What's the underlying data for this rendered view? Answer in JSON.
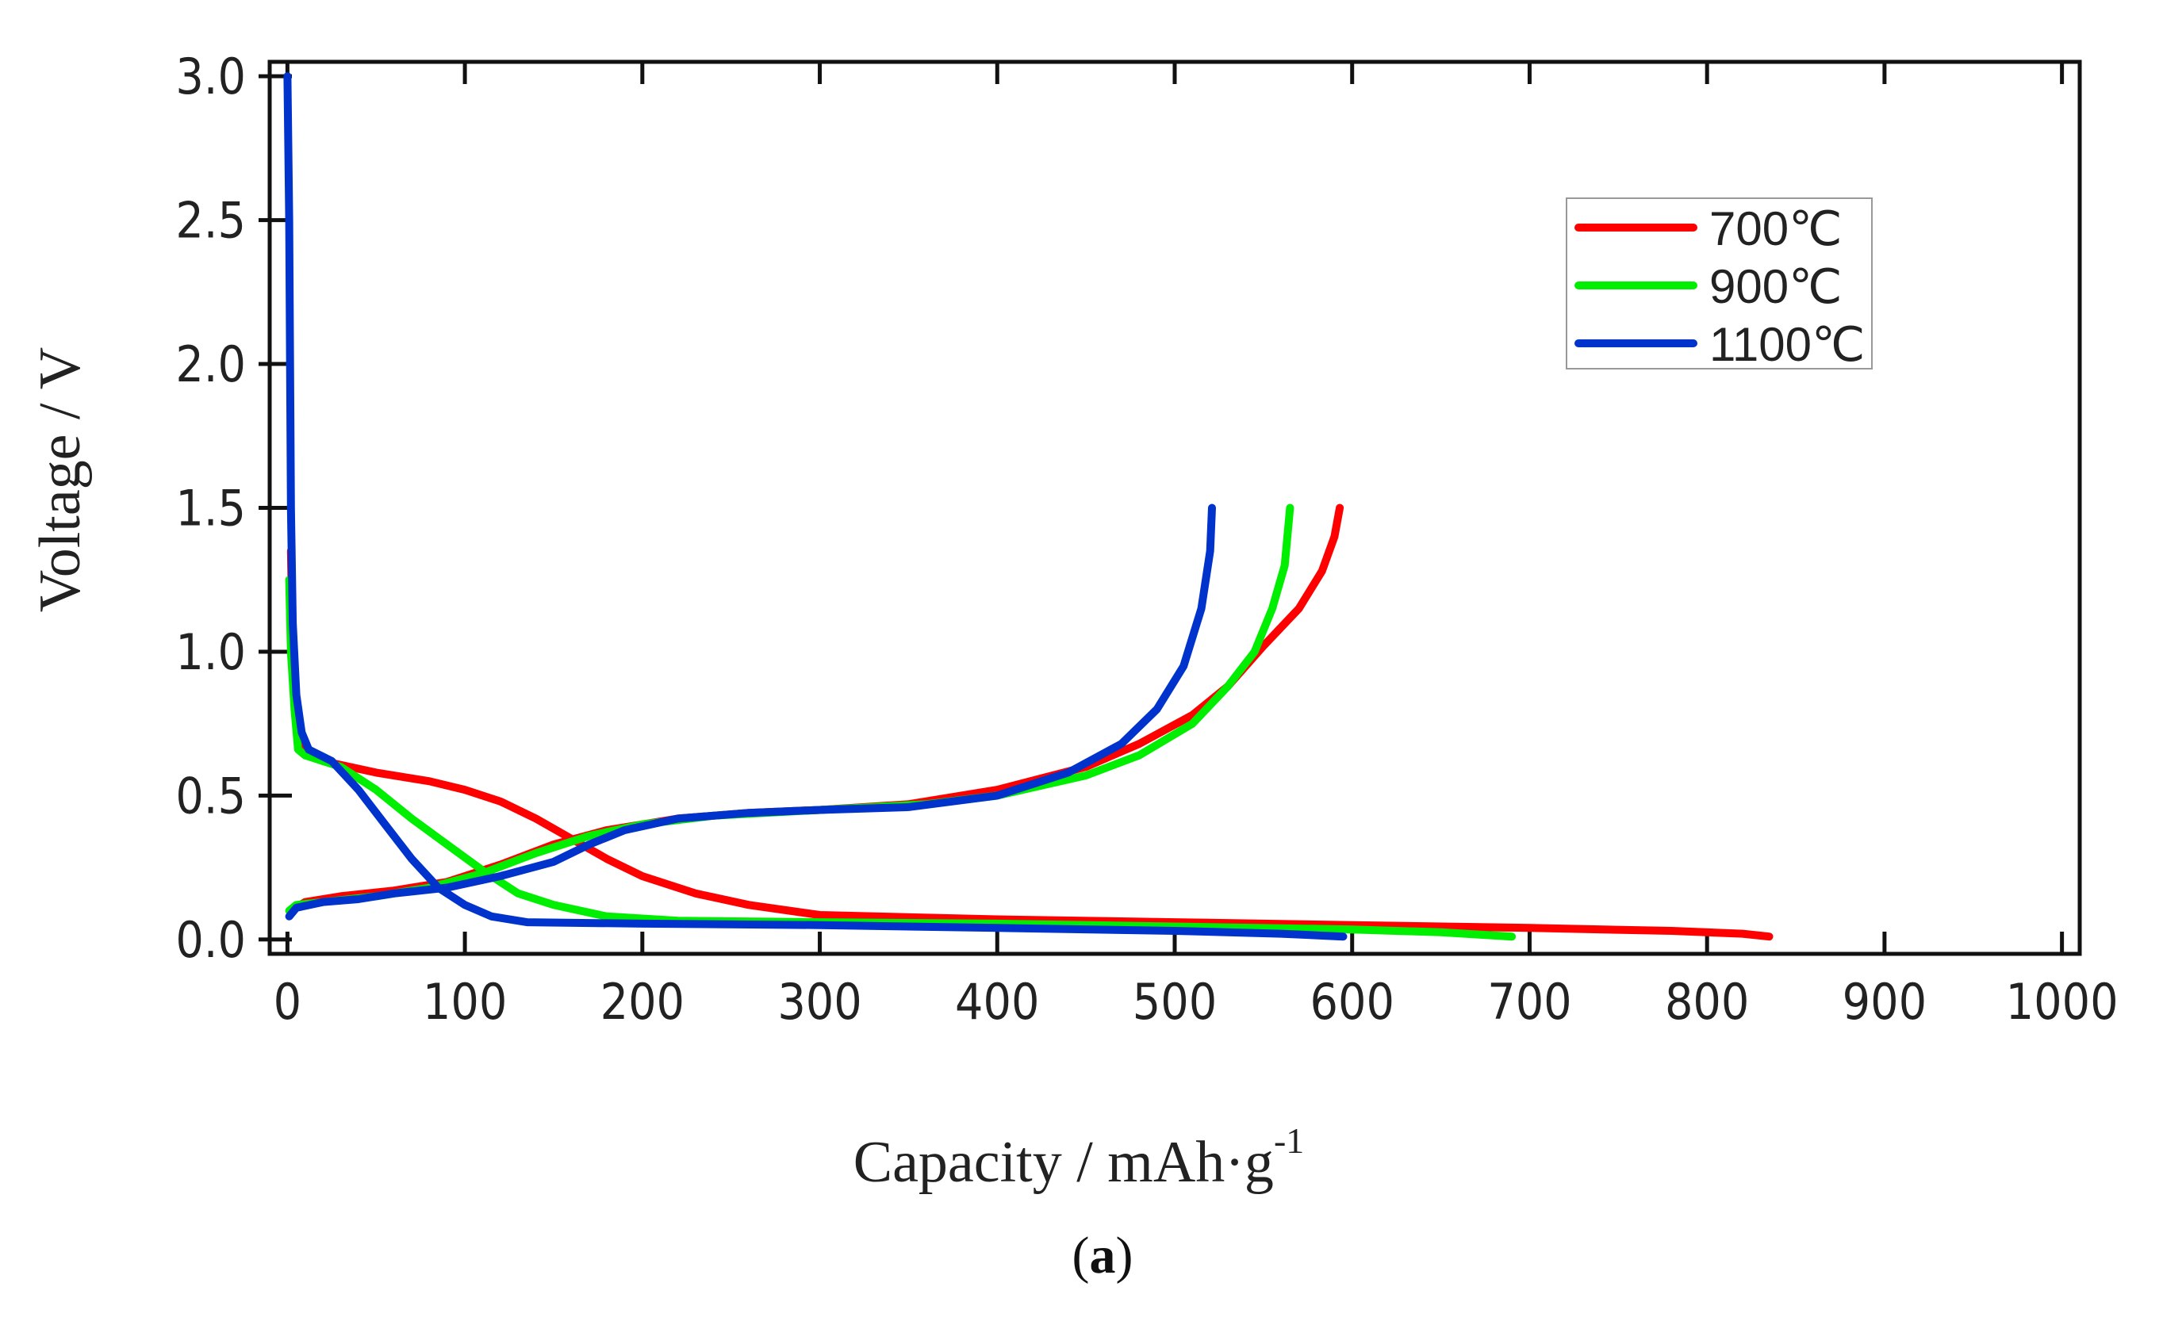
{
  "chart_data": {
    "type": "line",
    "title": "",
    "xlabel": "Capacity / mAh·g",
    "xlabel_superscript": "-1",
    "ylabel": "Voltage / V",
    "caption_paren_open": "(",
    "caption_letter": "a",
    "caption_paren_close": ")",
    "xlim": [
      -10,
      1010
    ],
    "ylim": [
      -0.05,
      3.05
    ],
    "xticks": [
      0,
      100,
      200,
      300,
      400,
      500,
      600,
      700,
      800,
      900,
      1000
    ],
    "xtick_labels": [
      "0",
      "100",
      "200",
      "300",
      "400",
      "500",
      "600",
      "700",
      "800",
      "900",
      "1000"
    ],
    "yticks": [
      0.0,
      0.5,
      1.0,
      1.5,
      2.0,
      2.5,
      3.0
    ],
    "ytick_labels": [
      "0.0",
      "0.5",
      "1.0",
      "1.5",
      "2.0",
      "2.5",
      "3.0"
    ],
    "grid": false,
    "legend_position": "top-right",
    "series": [
      {
        "name": "700℃",
        "color": "#ff0000",
        "discharge": [
          [
            2,
            1.35
          ],
          [
            3,
            1.0
          ],
          [
            5,
            0.8
          ],
          [
            8,
            0.68
          ],
          [
            20,
            0.62
          ],
          [
            50,
            0.58
          ],
          [
            80,
            0.55
          ],
          [
            100,
            0.52
          ],
          [
            120,
            0.48
          ],
          [
            140,
            0.42
          ],
          [
            160,
            0.35
          ],
          [
            180,
            0.28
          ],
          [
            200,
            0.22
          ],
          [
            230,
            0.16
          ],
          [
            260,
            0.12
          ],
          [
            300,
            0.085
          ],
          [
            400,
            0.07
          ],
          [
            500,
            0.06
          ],
          [
            600,
            0.05
          ],
          [
            700,
            0.04
          ],
          [
            780,
            0.03
          ],
          [
            820,
            0.02
          ],
          [
            835,
            0.01
          ]
        ],
        "charge": [
          [
            2,
            0.1
          ],
          [
            10,
            0.13
          ],
          [
            30,
            0.15
          ],
          [
            60,
            0.17
          ],
          [
            90,
            0.2
          ],
          [
            120,
            0.26
          ],
          [
            150,
            0.33
          ],
          [
            180,
            0.38
          ],
          [
            220,
            0.42
          ],
          [
            260,
            0.44
          ],
          [
            300,
            0.45
          ],
          [
            350,
            0.47
          ],
          [
            400,
            0.52
          ],
          [
            450,
            0.6
          ],
          [
            480,
            0.68
          ],
          [
            510,
            0.78
          ],
          [
            530,
            0.88
          ],
          [
            550,
            1.02
          ],
          [
            570,
            1.15
          ],
          [
            583,
            1.28
          ],
          [
            590,
            1.4
          ],
          [
            593,
            1.5
          ]
        ]
      },
      {
        "name": "900℃",
        "color": "#00ee00",
        "discharge": [
          [
            1,
            1.25
          ],
          [
            2,
            1.0
          ],
          [
            4,
            0.8
          ],
          [
            6,
            0.66
          ],
          [
            10,
            0.64
          ],
          [
            30,
            0.6
          ],
          [
            50,
            0.52
          ],
          [
            70,
            0.42
          ],
          [
            90,
            0.33
          ],
          [
            110,
            0.24
          ],
          [
            130,
            0.16
          ],
          [
            150,
            0.12
          ],
          [
            180,
            0.08
          ],
          [
            220,
            0.065
          ],
          [
            300,
            0.06
          ],
          [
            400,
            0.055
          ],
          [
            500,
            0.045
          ],
          [
            600,
            0.035
          ],
          [
            650,
            0.025
          ],
          [
            690,
            0.01
          ]
        ],
        "charge": [
          [
            1,
            0.1
          ],
          [
            5,
            0.12
          ],
          [
            20,
            0.13
          ],
          [
            50,
            0.15
          ],
          [
            80,
            0.18
          ],
          [
            110,
            0.23
          ],
          [
            140,
            0.3
          ],
          [
            170,
            0.36
          ],
          [
            200,
            0.4
          ],
          [
            240,
            0.43
          ],
          [
            300,
            0.45
          ],
          [
            360,
            0.47
          ],
          [
            400,
            0.5
          ],
          [
            450,
            0.57
          ],
          [
            480,
            0.64
          ],
          [
            510,
            0.75
          ],
          [
            530,
            0.88
          ],
          [
            545,
            1.0
          ],
          [
            555,
            1.15
          ],
          [
            562,
            1.3
          ],
          [
            565,
            1.5
          ]
        ]
      },
      {
        "name": "1100℃",
        "color": "#0033cc",
        "discharge": [
          [
            0,
            3.0
          ],
          [
            1,
            2.5
          ],
          [
            1.5,
            2.0
          ],
          [
            2,
            1.5
          ],
          [
            3,
            1.1
          ],
          [
            5,
            0.85
          ],
          [
            8,
            0.72
          ],
          [
            12,
            0.66
          ],
          [
            25,
            0.62
          ],
          [
            40,
            0.52
          ],
          [
            55,
            0.4
          ],
          [
            70,
            0.28
          ],
          [
            85,
            0.18
          ],
          [
            100,
            0.12
          ],
          [
            115,
            0.08
          ],
          [
            135,
            0.06
          ],
          [
            200,
            0.055
          ],
          [
            300,
            0.05
          ],
          [
            400,
            0.04
          ],
          [
            500,
            0.03
          ],
          [
            560,
            0.02
          ],
          [
            595,
            0.01
          ]
        ],
        "charge": [
          [
            1,
            0.08
          ],
          [
            5,
            0.11
          ],
          [
            20,
            0.13
          ],
          [
            40,
            0.14
          ],
          [
            60,
            0.16
          ],
          [
            90,
            0.18
          ],
          [
            120,
            0.22
          ],
          [
            150,
            0.27
          ],
          [
            170,
            0.33
          ],
          [
            190,
            0.38
          ],
          [
            220,
            0.42
          ],
          [
            260,
            0.44
          ],
          [
            300,
            0.45
          ],
          [
            350,
            0.46
          ],
          [
            400,
            0.5
          ],
          [
            440,
            0.58
          ],
          [
            470,
            0.68
          ],
          [
            490,
            0.8
          ],
          [
            505,
            0.95
          ],
          [
            515,
            1.15
          ],
          [
            520,
            1.35
          ],
          [
            521,
            1.5
          ]
        ]
      }
    ]
  }
}
